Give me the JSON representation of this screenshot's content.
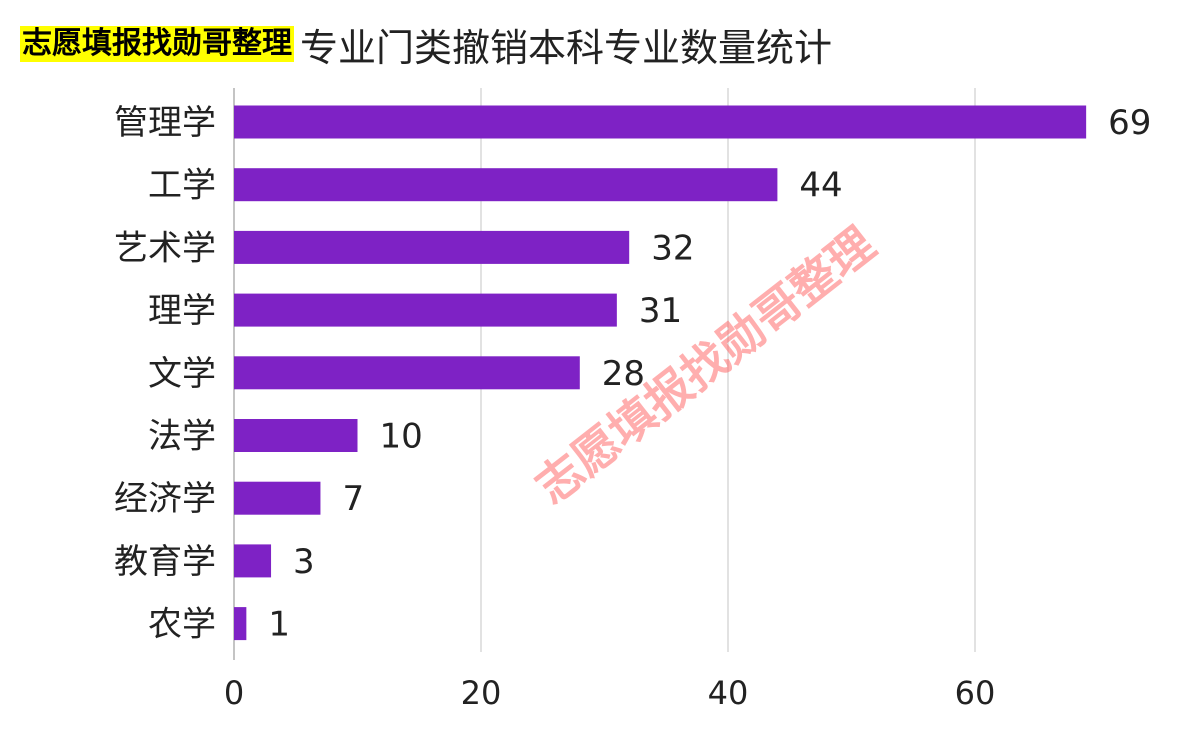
{
  "title_highlight": "志愿填报找勋哥整理",
  "title_main": "专业门类撤销本科专业数量统计",
  "watermark": "志愿填报找勋哥整理",
  "chart_data": {
    "type": "bar",
    "orientation": "horizontal",
    "categories": [
      "管理学",
      "工学",
      "艺术学",
      "理学",
      "文学",
      "法学",
      "经济学",
      "教育学",
      "农学"
    ],
    "values": [
      69,
      44,
      32,
      31,
      28,
      10,
      7,
      3,
      1
    ],
    "data_labels": [
      "69",
      "44",
      "32",
      "31",
      "28",
      "10",
      "7",
      "3",
      "1"
    ],
    "x_ticks": [
      "0",
      "20",
      "40",
      "60"
    ],
    "xlim": [
      0,
      70
    ],
    "grid": true,
    "bar_color": "#7e22c5",
    "grid_color": "#d9d9d9",
    "title": "专业门类撤销本科专业数量统计",
    "xlabel": "",
    "ylabel": ""
  }
}
